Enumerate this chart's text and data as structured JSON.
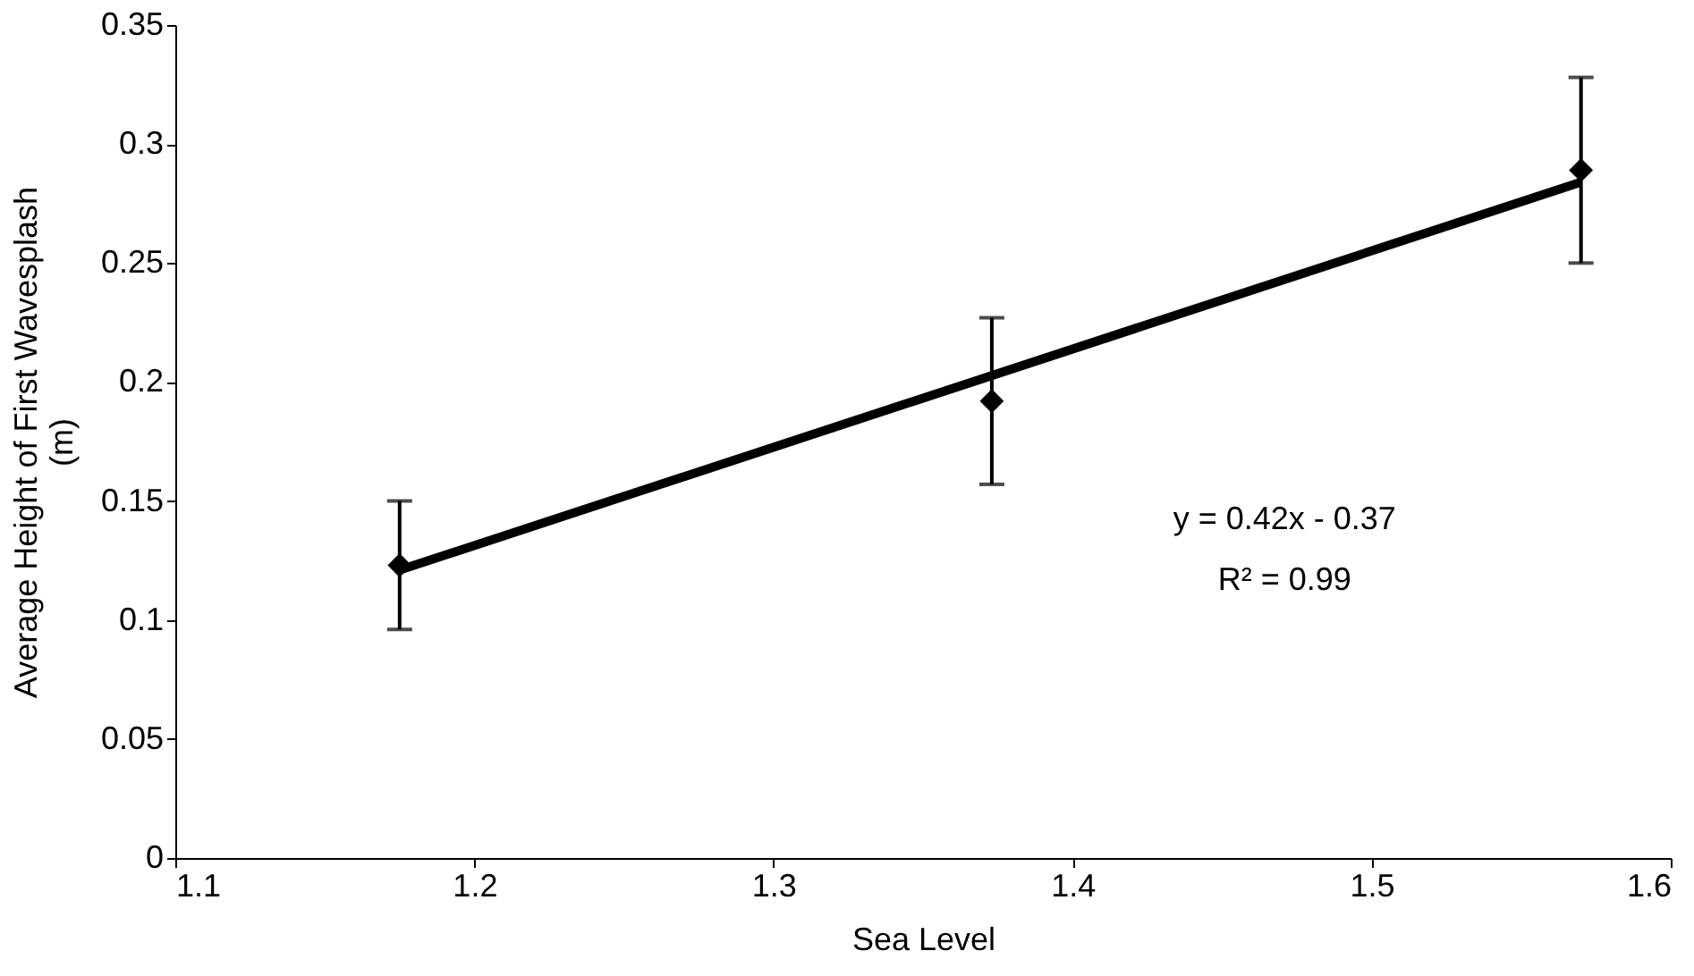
{
  "chart_data": {
    "type": "scatter",
    "xlabel": "Sea Level",
    "ylabel": "Average Height of First Wavesplash\n(m)",
    "xlim": [
      1.1,
      1.6
    ],
    "xticks": [
      1.1,
      1.2,
      1.3,
      1.4,
      1.5,
      1.6
    ],
    "ylim": [
      0,
      0.35
    ],
    "yticks": [
      0,
      0.05,
      0.1,
      0.15,
      0.2,
      0.25,
      0.3,
      0.35
    ],
    "grid": false,
    "legend": false,
    "x": [
      1.175,
      1.373,
      1.57
    ],
    "series": [
      {
        "type": "scatter",
        "color": "#000000",
        "values": [
          0.123,
          0.192,
          0.289
        ],
        "errors": [
          0.027,
          0.035,
          0.039
        ],
        "marker": "diamond"
      },
      {
        "type": "line",
        "color": "#000000",
        "x": [
          1.175,
          1.57
        ],
        "values": [
          0.121,
          0.284
        ],
        "marker": "none",
        "line_style": "solid"
      }
    ],
    "annotations": [
      "y = 0.42x - 0.37",
      "R² = 0.99"
    ]
  }
}
